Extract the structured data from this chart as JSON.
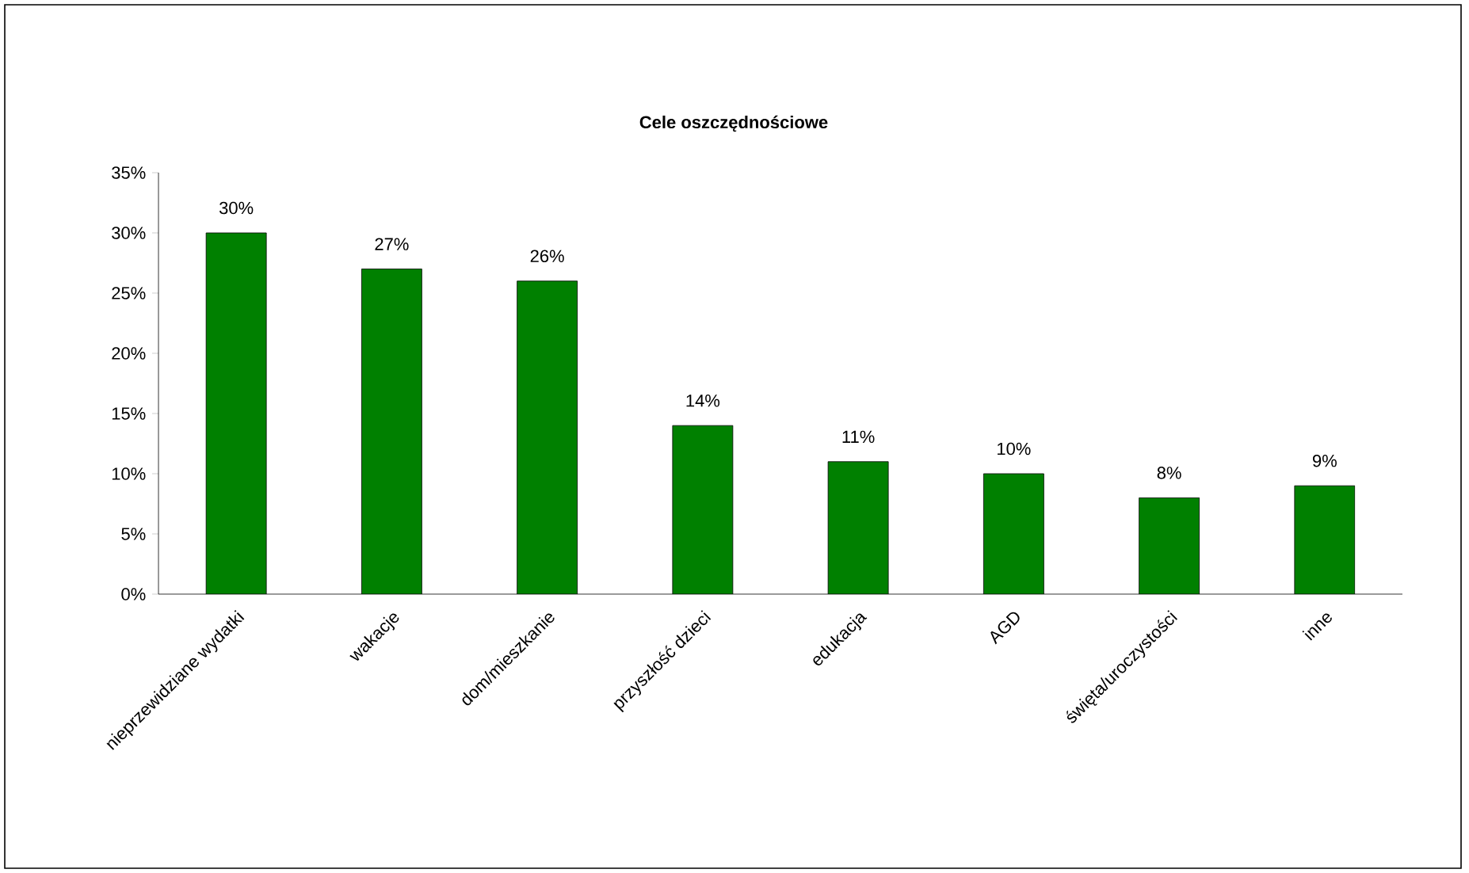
{
  "chart_data": {
    "type": "bar",
    "title": "Cele oszczędnościowe",
    "categories": [
      "nieprzewidziane wydatki",
      "wakacje",
      "dom/mieszkanie",
      "przyszłość dzieci",
      "edukacja",
      "AGD",
      "święta/uroczystości",
      "inne"
    ],
    "values": [
      30,
      27,
      26,
      14,
      11,
      10,
      8,
      9
    ],
    "value_labels": [
      "30%",
      "27%",
      "26%",
      "14%",
      "11%",
      "10%",
      "8%",
      "9%"
    ],
    "color": "#008000",
    "ylim": [
      0,
      35
    ],
    "yticks": [
      {
        "value": 0,
        "label": "0%"
      },
      {
        "value": 5,
        "label": "5%"
      },
      {
        "value": 10,
        "label": "10%"
      },
      {
        "value": 15,
        "label": "15%"
      },
      {
        "value": 20,
        "label": "20%"
      },
      {
        "value": 25,
        "label": "25%"
      },
      {
        "value": 30,
        "label": "30%"
      },
      {
        "value": 35,
        "label": "35%"
      }
    ],
    "grid": false
  }
}
